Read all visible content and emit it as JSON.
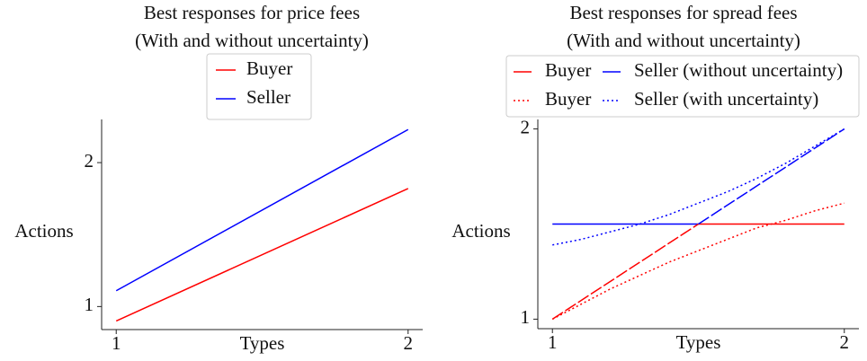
{
  "chart_data": [
    {
      "type": "line",
      "title": [
        "Best responses for price fees",
        "(With and without uncertainty)"
      ],
      "xlabel": "Types",
      "ylabel": "Actions",
      "xlim": [
        0.95,
        2.05
      ],
      "ylim": [
        0.84,
        2.3
      ],
      "xticks": [
        1,
        2
      ],
      "yticks": [
        1,
        2
      ],
      "legend": "upper center",
      "legend_ncol": 1,
      "series": [
        {
          "name": "Buyer",
          "color": "#ff0000",
          "linestyle": "solid",
          "x": [
            1,
            2
          ],
          "values": [
            0.9,
            1.82
          ]
        },
        {
          "name": "Seller",
          "color": "#0000ff",
          "linestyle": "solid",
          "x": [
            1,
            2
          ],
          "values": [
            1.11,
            2.23
          ]
        }
      ]
    },
    {
      "type": "line",
      "title": [
        "Best responses for spread fees",
        "(With and without uncertainty)"
      ],
      "xlabel": "Types",
      "ylabel": "Actions",
      "xlim": [
        0.95,
        2.05
      ],
      "ylim": [
        0.95,
        2.05
      ],
      "xticks": [
        1,
        2
      ],
      "yticks": [
        1,
        2
      ],
      "legend": "upper center",
      "legend_ncol": 2,
      "series": [
        {
          "name": "Buyer",
          "color": "#ff0000",
          "linestyle": "solid",
          "x": [
            1.5,
            2
          ],
          "values": [
            1.5,
            1.5
          ]
        },
        {
          "name": "Buyer",
          "color": "#ff0000",
          "linestyle": "dotted",
          "x": [
            1,
            1.1,
            1.2,
            1.3,
            1.4,
            1.5,
            1.6,
            1.7,
            1.8,
            1.9,
            2
          ],
          "values": [
            1,
            1.08,
            1.16,
            1.23,
            1.3,
            1.36,
            1.42,
            1.48,
            1.52,
            1.57,
            1.61
          ]
        },
        {
          "name": "Seller (without uncertainty)",
          "color": "#0000ff",
          "linestyle": "solid",
          "x": [
            1,
            1.5
          ],
          "values": [
            1.5,
            1.5
          ]
        },
        {
          "name": "Seller (with uncertainty)",
          "color": "#0000ff",
          "linestyle": "dotted",
          "x": [
            1,
            1.1,
            1.2,
            1.3,
            1.4,
            1.5,
            1.6,
            1.7,
            1.8,
            1.9,
            2
          ],
          "values": [
            1.39,
            1.42,
            1.46,
            1.5,
            1.55,
            1.61,
            1.67,
            1.74,
            1.82,
            1.91,
            2
          ]
        },
        {
          "color": "#ff0000",
          "linestyle": "dashed",
          "x": [
            1,
            1.5
          ],
          "values": [
            1,
            1.5
          ]
        },
        {
          "color": "#0000ff",
          "linestyle": "dashed",
          "x": [
            1.5,
            2
          ],
          "values": [
            1.5,
            2
          ]
        }
      ]
    }
  ]
}
